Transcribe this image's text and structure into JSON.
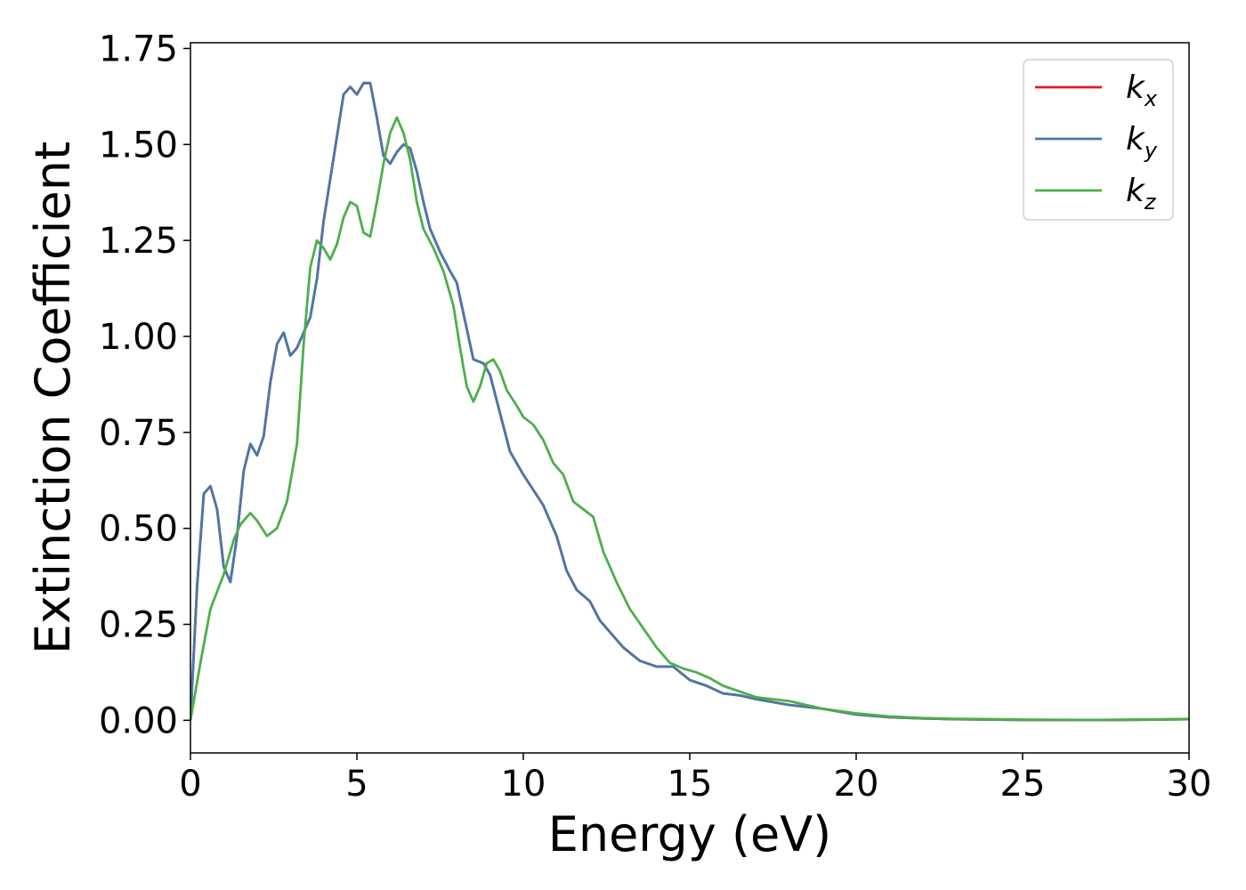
{
  "chart_data": {
    "type": "line",
    "title": "",
    "xlabel": "Energy (eV)",
    "ylabel": "Extinction Coefficient",
    "xlim": [
      0,
      30
    ],
    "ylim": [
      -0.085,
      1.765
    ],
    "xticks": [
      0,
      5,
      10,
      15,
      20,
      25,
      30
    ],
    "xtick_labels": [
      "0",
      "5",
      "10",
      "15",
      "20",
      "25",
      "30"
    ],
    "yticks": [
      0,
      0.25,
      0.5,
      0.75,
      1.0,
      1.25,
      1.5,
      1.75
    ],
    "ytick_labels": [
      "0.00",
      "0.25",
      "0.50",
      "0.75",
      "1.00",
      "1.25",
      "1.50",
      "1.75"
    ],
    "grid": false,
    "legend_position": "top-right",
    "series": [
      {
        "name": "k",
        "subscript": "x",
        "color": "#e41a1c",
        "x": [
          0,
          0.2,
          0.4,
          0.6,
          0.8,
          1.0,
          1.2,
          1.4,
          1.6,
          1.8,
          2.0,
          2.2,
          2.4,
          2.6,
          2.8,
          3.0,
          3.2,
          3.4,
          3.6,
          3.8,
          4.0,
          4.2,
          4.4,
          4.6,
          4.8,
          5.0,
          5.2,
          5.4,
          5.6,
          5.8,
          6.0,
          6.2,
          6.4,
          6.6,
          6.8,
          7.0,
          7.2,
          7.5,
          7.8,
          8.0,
          8.2,
          8.5,
          8.8,
          9.0,
          9.3,
          9.6,
          10.0,
          10.3,
          10.6,
          11.0,
          11.3,
          11.6,
          12.0,
          12.3,
          12.6,
          13.0,
          13.5,
          14.0,
          14.5,
          15.0,
          15.5,
          16.0,
          16.5,
          17.0,
          18.0,
          19.0,
          20.0,
          21.0,
          22.0,
          23.0,
          24.0,
          25.0,
          26.0,
          28.0,
          30.0
        ],
        "y": [
          0.0,
          0.35,
          0.59,
          0.61,
          0.55,
          0.4,
          0.36,
          0.48,
          0.65,
          0.72,
          0.69,
          0.74,
          0.88,
          0.98,
          1.01,
          0.95,
          0.97,
          1.01,
          1.05,
          1.15,
          1.3,
          1.41,
          1.52,
          1.63,
          1.65,
          1.63,
          1.66,
          1.66,
          1.57,
          1.47,
          1.45,
          1.48,
          1.5,
          1.49,
          1.43,
          1.35,
          1.28,
          1.22,
          1.17,
          1.14,
          1.06,
          0.94,
          0.93,
          0.9,
          0.8,
          0.7,
          0.64,
          0.6,
          0.56,
          0.48,
          0.39,
          0.34,
          0.31,
          0.26,
          0.23,
          0.19,
          0.155,
          0.14,
          0.14,
          0.105,
          0.09,
          0.07,
          0.065,
          0.055,
          0.04,
          0.03,
          0.015,
          0.008,
          0.005,
          0.003,
          0.002,
          0.001,
          0.001,
          0.001,
          0.003
        ]
      },
      {
        "name": "k",
        "subscript": "y",
        "color": "#4a78a8",
        "x": [
          0,
          0.2,
          0.4,
          0.6,
          0.8,
          1.0,
          1.2,
          1.4,
          1.6,
          1.8,
          2.0,
          2.2,
          2.4,
          2.6,
          2.8,
          3.0,
          3.2,
          3.4,
          3.6,
          3.8,
          4.0,
          4.2,
          4.4,
          4.6,
          4.8,
          5.0,
          5.2,
          5.4,
          5.6,
          5.8,
          6.0,
          6.2,
          6.4,
          6.6,
          6.8,
          7.0,
          7.2,
          7.5,
          7.8,
          8.0,
          8.2,
          8.5,
          8.8,
          9.0,
          9.3,
          9.6,
          10.0,
          10.3,
          10.6,
          11.0,
          11.3,
          11.6,
          12.0,
          12.3,
          12.6,
          13.0,
          13.5,
          14.0,
          14.5,
          15.0,
          15.5,
          16.0,
          16.5,
          17.0,
          18.0,
          19.0,
          20.0,
          21.0,
          22.0,
          23.0,
          24.0,
          25.0,
          26.0,
          28.0,
          30.0
        ],
        "y": [
          0.0,
          0.35,
          0.59,
          0.61,
          0.55,
          0.4,
          0.36,
          0.48,
          0.65,
          0.72,
          0.69,
          0.74,
          0.88,
          0.98,
          1.01,
          0.95,
          0.97,
          1.01,
          1.05,
          1.15,
          1.3,
          1.41,
          1.52,
          1.63,
          1.65,
          1.63,
          1.66,
          1.66,
          1.57,
          1.47,
          1.45,
          1.48,
          1.5,
          1.49,
          1.43,
          1.35,
          1.28,
          1.22,
          1.17,
          1.14,
          1.06,
          0.94,
          0.93,
          0.9,
          0.8,
          0.7,
          0.64,
          0.6,
          0.56,
          0.48,
          0.39,
          0.34,
          0.31,
          0.26,
          0.23,
          0.19,
          0.155,
          0.14,
          0.14,
          0.105,
          0.09,
          0.07,
          0.065,
          0.055,
          0.04,
          0.03,
          0.015,
          0.008,
          0.005,
          0.003,
          0.002,
          0.001,
          0.001,
          0.001,
          0.003
        ]
      },
      {
        "name": "k",
        "subscript": "z",
        "color": "#4daf4a",
        "x": [
          0,
          0.3,
          0.6,
          1.0,
          1.3,
          1.5,
          1.8,
          2.0,
          2.3,
          2.6,
          2.9,
          3.2,
          3.4,
          3.6,
          3.8,
          4.0,
          4.2,
          4.4,
          4.6,
          4.8,
          5.0,
          5.2,
          5.4,
          5.6,
          5.8,
          6.0,
          6.2,
          6.4,
          6.6,
          6.8,
          7.0,
          7.3,
          7.6,
          7.9,
          8.1,
          8.3,
          8.5,
          8.7,
          8.9,
          9.1,
          9.3,
          9.5,
          9.8,
          10.0,
          10.3,
          10.6,
          10.9,
          11.2,
          11.5,
          11.8,
          12.1,
          12.4,
          12.8,
          13.2,
          13.6,
          14.0,
          14.4,
          14.8,
          15.2,
          15.6,
          16.0,
          16.5,
          17.0,
          17.5,
          18.0,
          18.5,
          19.0,
          20.0,
          21.0,
          22.0,
          23.0,
          24.0,
          25.0,
          27.0,
          30.0
        ],
        "y": [
          0.0,
          0.15,
          0.29,
          0.38,
          0.47,
          0.51,
          0.54,
          0.52,
          0.48,
          0.5,
          0.57,
          0.72,
          0.98,
          1.18,
          1.25,
          1.23,
          1.2,
          1.24,
          1.31,
          1.35,
          1.34,
          1.27,
          1.26,
          1.35,
          1.45,
          1.53,
          1.57,
          1.53,
          1.46,
          1.35,
          1.28,
          1.23,
          1.17,
          1.08,
          0.97,
          0.87,
          0.83,
          0.87,
          0.93,
          0.94,
          0.91,
          0.86,
          0.82,
          0.79,
          0.77,
          0.73,
          0.67,
          0.64,
          0.57,
          0.55,
          0.53,
          0.44,
          0.36,
          0.29,
          0.24,
          0.19,
          0.15,
          0.135,
          0.125,
          0.11,
          0.09,
          0.075,
          0.06,
          0.055,
          0.05,
          0.04,
          0.03,
          0.018,
          0.01,
          0.006,
          0.004,
          0.003,
          0.002,
          0.001,
          0.003
        ]
      }
    ]
  }
}
